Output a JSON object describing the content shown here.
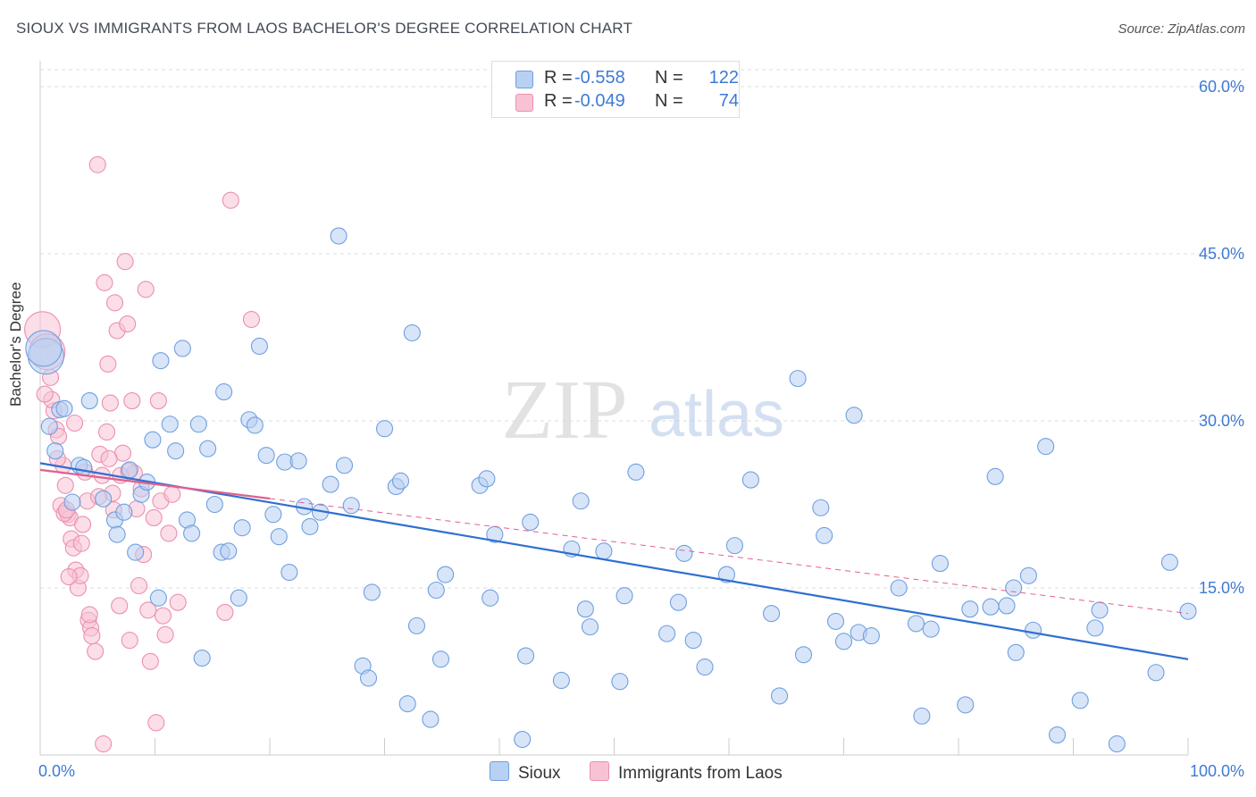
{
  "title": "SIOUX VS IMMIGRANTS FROM LAOS BACHELOR'S DEGREE CORRELATION CHART",
  "source": "Source: ZipAtlas.com",
  "watermark": {
    "zip": "ZIP",
    "atlas": "atlas"
  },
  "colors": {
    "sioux_fill": "#b8d0f2",
    "sioux_stroke": "#6f9fe0",
    "sioux_line": "#2f6fd0",
    "laos_fill": "#f7c3d4",
    "laos_stroke": "#ec8fb0",
    "laos_line": "#e06090",
    "grid": "#dddddd",
    "tick_text": "#3d7ad6"
  },
  "legend": {
    "sioux": {
      "r_label": "R =",
      "r_value": "-0.558",
      "n_label": "N =",
      "n_value": "122"
    },
    "laos": {
      "r_label": "R =",
      "r_value": "-0.049",
      "n_label": "N =",
      "n_value": "74"
    }
  },
  "chart_data": {
    "type": "scatter",
    "title": "SIOUX VS IMMIGRANTS FROM LAOS BACHELOR'S DEGREE CORRELATION CHART",
    "xlabel": "",
    "ylabel": "Bachelor's Degree",
    "xlim": [
      0,
      100
    ],
    "ylim": [
      0,
      60
    ],
    "x_tick_labels": [
      "0.0%",
      "100.0%"
    ],
    "y_ticks": [
      15,
      30,
      45,
      60
    ],
    "y_tick_labels": [
      "15.0%",
      "30.0%",
      "45.0%",
      "60.0%"
    ],
    "grid": "horizontal dashed",
    "legend_position": "top-center",
    "series": [
      {
        "name": "Sioux",
        "trend": {
          "x": [
            0,
            100
          ],
          "y": [
            26.2,
            8.6
          ]
        },
        "points": [
          [
            0.5,
            35.8
          ],
          [
            0.8,
            29.5
          ],
          [
            1.3,
            27.3
          ],
          [
            1.7,
            31.0
          ],
          [
            2.1,
            31.1
          ],
          [
            2.8,
            22.7
          ],
          [
            3.4,
            26.0
          ],
          [
            3.8,
            25.8
          ],
          [
            4.3,
            31.8
          ],
          [
            5.5,
            23.0
          ],
          [
            6.5,
            21.1
          ],
          [
            6.7,
            19.8
          ],
          [
            7.3,
            21.8
          ],
          [
            7.8,
            25.6
          ],
          [
            8.3,
            18.2
          ],
          [
            8.8,
            23.4
          ],
          [
            9.3,
            24.5
          ],
          [
            9.8,
            28.3
          ],
          [
            10.3,
            14.1
          ],
          [
            10.5,
            35.4
          ],
          [
            11.3,
            29.7
          ],
          [
            11.8,
            27.3
          ],
          [
            12.4,
            36.5
          ],
          [
            12.8,
            21.1
          ],
          [
            13.2,
            19.9
          ],
          [
            13.8,
            29.7
          ],
          [
            14.1,
            8.7
          ],
          [
            14.6,
            27.5
          ],
          [
            15.2,
            22.5
          ],
          [
            15.8,
            18.2
          ],
          [
            16.0,
            32.6
          ],
          [
            16.4,
            18.3
          ],
          [
            17.3,
            14.1
          ],
          [
            17.6,
            20.4
          ],
          [
            18.2,
            30.1
          ],
          [
            18.7,
            29.6
          ],
          [
            19.1,
            36.7
          ],
          [
            19.7,
            26.9
          ],
          [
            20.3,
            21.6
          ],
          [
            20.8,
            19.6
          ],
          [
            21.3,
            26.3
          ],
          [
            21.7,
            16.4
          ],
          [
            22.5,
            26.4
          ],
          [
            23.0,
            22.3
          ],
          [
            23.5,
            20.5
          ],
          [
            24.4,
            21.8
          ],
          [
            25.3,
            24.3
          ],
          [
            26.0,
            46.6
          ],
          [
            26.5,
            26.0
          ],
          [
            27.1,
            22.4
          ],
          [
            28.1,
            8.0
          ],
          [
            28.6,
            6.9
          ],
          [
            28.9,
            14.6
          ],
          [
            30.0,
            29.3
          ],
          [
            31.0,
            24.1
          ],
          [
            31.4,
            24.6
          ],
          [
            32.0,
            4.6
          ],
          [
            32.4,
            37.9
          ],
          [
            32.8,
            11.6
          ],
          [
            34.0,
            3.2
          ],
          [
            34.5,
            14.8
          ],
          [
            34.9,
            8.6
          ],
          [
            35.3,
            16.2
          ],
          [
            38.3,
            24.2
          ],
          [
            38.9,
            24.8
          ],
          [
            39.2,
            14.1
          ],
          [
            39.6,
            19.8
          ],
          [
            42.0,
            1.4
          ],
          [
            42.3,
            8.9
          ],
          [
            42.7,
            20.9
          ],
          [
            45.4,
            6.7
          ],
          [
            46.3,
            18.5
          ],
          [
            47.1,
            22.8
          ],
          [
            47.5,
            13.1
          ],
          [
            47.9,
            11.5
          ],
          [
            49.1,
            18.3
          ],
          [
            50.5,
            6.6
          ],
          [
            50.9,
            14.3
          ],
          [
            51.9,
            25.4
          ],
          [
            54.6,
            10.9
          ],
          [
            55.6,
            13.7
          ],
          [
            56.1,
            18.1
          ],
          [
            56.9,
            10.3
          ],
          [
            57.9,
            7.9
          ],
          [
            59.8,
            16.2
          ],
          [
            60.5,
            18.8
          ],
          [
            61.9,
            24.7
          ],
          [
            63.7,
            12.7
          ],
          [
            64.4,
            5.3
          ],
          [
            66.0,
            33.8
          ],
          [
            66.5,
            9.0
          ],
          [
            68.0,
            22.2
          ],
          [
            68.3,
            19.7
          ],
          [
            69.3,
            12.0
          ],
          [
            70.0,
            10.2
          ],
          [
            70.9,
            30.5
          ],
          [
            71.3,
            11.0
          ],
          [
            72.4,
            10.7
          ],
          [
            74.8,
            15.0
          ],
          [
            76.3,
            11.8
          ],
          [
            76.8,
            3.5
          ],
          [
            77.6,
            11.3
          ],
          [
            78.4,
            17.2
          ],
          [
            80.6,
            4.5
          ],
          [
            81.0,
            13.1
          ],
          [
            82.8,
            13.3
          ],
          [
            83.2,
            25.0
          ],
          [
            84.2,
            13.4
          ],
          [
            84.8,
            15.0
          ],
          [
            85.0,
            9.2
          ],
          [
            86.1,
            16.1
          ],
          [
            86.5,
            11.2
          ],
          [
            87.6,
            27.7
          ],
          [
            88.6,
            1.8
          ],
          [
            90.6,
            4.9
          ],
          [
            91.9,
            11.4
          ],
          [
            92.3,
            13.0
          ],
          [
            93.8,
            1.0
          ],
          [
            97.2,
            7.4
          ],
          [
            98.4,
            17.3
          ],
          [
            100.0,
            12.9
          ],
          [
            0.3,
            36.5
          ]
        ]
      },
      {
        "name": "Immigrants from Laos",
        "trend": {
          "x": [
            0,
            100
          ],
          "y": [
            25.6,
            12.7
          ]
        },
        "points": [
          [
            0.2,
            38.2
          ],
          [
            0.6,
            36.2
          ],
          [
            0.9,
            33.9
          ],
          [
            1.2,
            30.9
          ],
          [
            1.4,
            29.2
          ],
          [
            1.6,
            28.6
          ],
          [
            1.8,
            22.4
          ],
          [
            2.0,
            26.0
          ],
          [
            2.2,
            24.2
          ],
          [
            2.4,
            21.6
          ],
          [
            2.6,
            21.3
          ],
          [
            2.7,
            19.4
          ],
          [
            2.9,
            18.6
          ],
          [
            3.1,
            16.6
          ],
          [
            3.3,
            15.0
          ],
          [
            3.5,
            16.1
          ],
          [
            3.7,
            20.7
          ],
          [
            3.9,
            25.4
          ],
          [
            4.1,
            22.8
          ],
          [
            4.2,
            12.1
          ],
          [
            4.4,
            11.4
          ],
          [
            4.5,
            10.7
          ],
          [
            4.8,
            9.3
          ],
          [
            5.0,
            53.0
          ],
          [
            5.2,
            27.0
          ],
          [
            5.4,
            25.1
          ],
          [
            5.6,
            42.4
          ],
          [
            5.8,
            29.0
          ],
          [
            5.9,
            35.1
          ],
          [
            6.1,
            31.6
          ],
          [
            6.3,
            23.5
          ],
          [
            6.5,
            40.6
          ],
          [
            6.7,
            38.1
          ],
          [
            6.9,
            13.4
          ],
          [
            7.2,
            27.1
          ],
          [
            7.4,
            44.3
          ],
          [
            7.6,
            38.7
          ],
          [
            7.8,
            10.3
          ],
          [
            8.0,
            31.8
          ],
          [
            8.2,
            25.3
          ],
          [
            8.4,
            22.1
          ],
          [
            8.6,
            15.2
          ],
          [
            8.8,
            23.9
          ],
          [
            9.0,
            18.0
          ],
          [
            9.2,
            41.8
          ],
          [
            9.4,
            13.0
          ],
          [
            9.6,
            8.4
          ],
          [
            9.9,
            21.3
          ],
          [
            10.1,
            2.9
          ],
          [
            10.3,
            31.8
          ],
          [
            10.5,
            22.8
          ],
          [
            10.7,
            12.5
          ],
          [
            10.9,
            10.8
          ],
          [
            11.2,
            19.9
          ],
          [
            11.5,
            23.4
          ],
          [
            12.0,
            13.7
          ],
          [
            16.1,
            12.8
          ],
          [
            16.6,
            49.8
          ],
          [
            18.4,
            39.1
          ],
          [
            1.0,
            31.9
          ],
          [
            1.5,
            26.6
          ],
          [
            2.1,
            21.7
          ],
          [
            2.3,
            22.0
          ],
          [
            2.5,
            16.0
          ],
          [
            3.0,
            29.8
          ],
          [
            3.6,
            19.0
          ],
          [
            4.3,
            12.6
          ],
          [
            5.1,
            23.2
          ],
          [
            5.5,
            1.0
          ],
          [
            6.0,
            26.6
          ],
          [
            6.4,
            22.0
          ],
          [
            7.0,
            25.1
          ],
          [
            7.7,
            25.5
          ],
          [
            0.4,
            32.4
          ]
        ]
      }
    ]
  },
  "bottom_legend": {
    "sioux": "Sioux",
    "laos": "Immigrants from Laos"
  }
}
